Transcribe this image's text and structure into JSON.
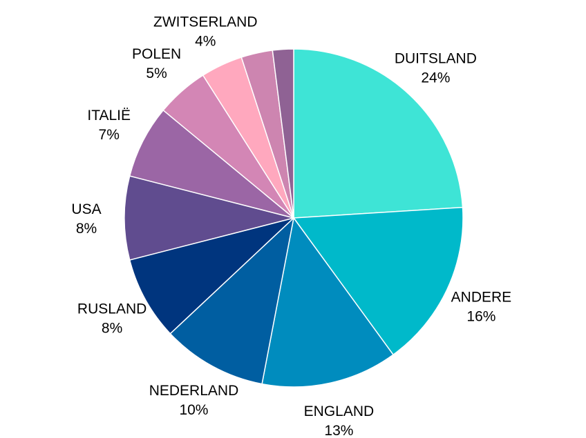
{
  "chart_data": {
    "type": "pie",
    "title": "",
    "start": "12 o'clock, clockwise",
    "slices": [
      {
        "label": "DUITSLAND",
        "pct": "24%",
        "value": 24,
        "color": "#3ee4d6"
      },
      {
        "label": "ANDERE",
        "pct": "16%",
        "value": 16,
        "color": "#00b9ca"
      },
      {
        "label": "ENGLAND",
        "pct": "13%",
        "value": 13,
        "color": "#008cbe"
      },
      {
        "label": "NEDERLAND",
        "pct": "10%",
        "value": 10,
        "color": "#005ea1"
      },
      {
        "label": "RUSLAND",
        "pct": "8%",
        "value": 8,
        "color": "#00357e"
      },
      {
        "label": "USA",
        "pct": "8%",
        "value": 8,
        "color": "#604c8f"
      },
      {
        "label": "ITALIË",
        "pct": "7%",
        "value": 7,
        "color": "#9b66a5"
      },
      {
        "label": "POLEN",
        "pct": "5%",
        "value": 5,
        "color": "#d386b5"
      },
      {
        "label": "ZWITSERLAND",
        "pct": "4%",
        "value": 4,
        "color": "#ffa8be"
      },
      {
        "label": "",
        "pct": "",
        "value": 3,
        "color": "#cd85b0"
      },
      {
        "label": "",
        "pct": "",
        "value": 2,
        "color": "#8f6294"
      }
    ]
  }
}
